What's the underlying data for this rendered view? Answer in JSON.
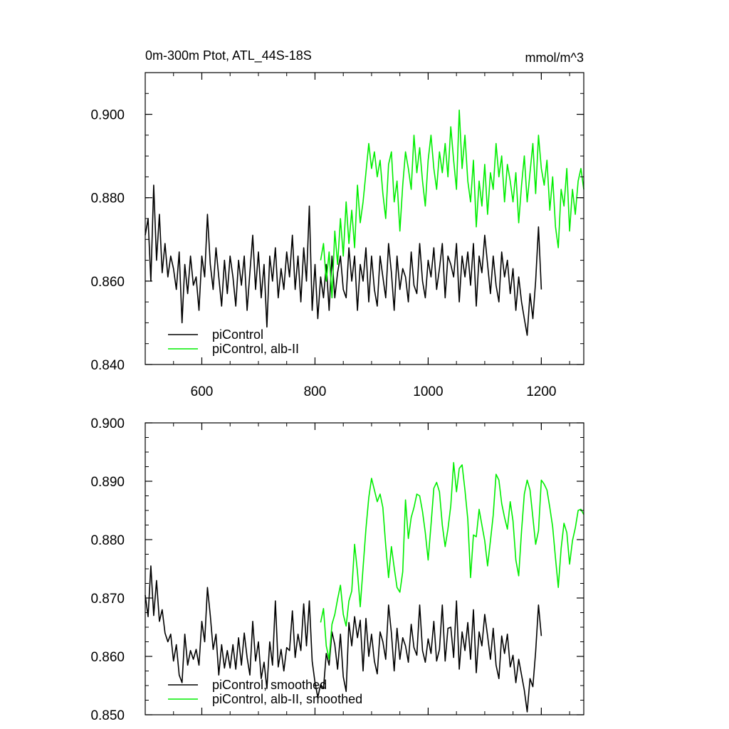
{
  "figure": {
    "title_left": "0m-300m Ptot, ATL_44S-18S",
    "title_right": "mmol/m^3"
  },
  "colors": {
    "control": "#000000",
    "alb": "#00ee00"
  },
  "chart_data": [
    {
      "type": "line",
      "title": "0m-300m Ptot, ATL_44S-18S",
      "units": "mmol/m^3",
      "xlim": [
        500,
        1275
      ],
      "ylim": [
        0.84,
        0.91
      ],
      "x_ticks": [
        600,
        800,
        1000,
        1200
      ],
      "x_tick_labels": [
        "600",
        "800",
        "1000",
        "1200"
      ],
      "y_ticks": [
        0.84,
        0.86,
        0.88,
        0.9
      ],
      "y_tick_labels": [
        "0.840",
        "0.860",
        "0.880",
        "0.900"
      ],
      "grid": false,
      "legend_position": "bottom-left",
      "series": [
        {
          "name": "piControl",
          "color": "#000000",
          "x": [
            500,
            505,
            510,
            515,
            520,
            525,
            530,
            535,
            540,
            545,
            550,
            555,
            560,
            565,
            570,
            575,
            580,
            585,
            590,
            595,
            600,
            605,
            610,
            615,
            620,
            625,
            630,
            635,
            640,
            645,
            650,
            655,
            660,
            665,
            670,
            675,
            680,
            685,
            690,
            695,
            700,
            705,
            710,
            715,
            720,
            725,
            730,
            735,
            740,
            745,
            750,
            755,
            760,
            765,
            770,
            775,
            780,
            785,
            790,
            795,
            800,
            805,
            810,
            815,
            820,
            825,
            830,
            835,
            840,
            845,
            850,
            855,
            860,
            865,
            870,
            875,
            880,
            885,
            890,
            895,
            900,
            905,
            910,
            915,
            920,
            925,
            930,
            935,
            940,
            945,
            950,
            955,
            960,
            965,
            970,
            975,
            980,
            985,
            990,
            995,
            1000,
            1005,
            1010,
            1015,
            1020,
            1025,
            1030,
            1035,
            1040,
            1045,
            1050,
            1055,
            1060,
            1065,
            1070,
            1075,
            1080,
            1085,
            1090,
            1095,
            1100,
            1105,
            1110,
            1115,
            1120,
            1125,
            1130,
            1135,
            1140,
            1145,
            1150,
            1155,
            1160,
            1165,
            1170,
            1175,
            1180,
            1185,
            1190,
            1195,
            1200
          ],
          "y": [
            0.871,
            0.875,
            0.86,
            0.883,
            0.865,
            0.876,
            0.862,
            0.869,
            0.861,
            0.866,
            0.863,
            0.858,
            0.867,
            0.85,
            0.864,
            0.857,
            0.866,
            0.859,
            0.861,
            0.853,
            0.866,
            0.861,
            0.876,
            0.864,
            0.858,
            0.868,
            0.861,
            0.854,
            0.865,
            0.857,
            0.866,
            0.861,
            0.854,
            0.865,
            0.859,
            0.866,
            0.853,
            0.862,
            0.871,
            0.858,
            0.867,
            0.856,
            0.864,
            0.849,
            0.866,
            0.86,
            0.868,
            0.856,
            0.863,
            0.858,
            0.867,
            0.861,
            0.871,
            0.858,
            0.866,
            0.855,
            0.868,
            0.86,
            0.878,
            0.853,
            0.864,
            0.851,
            0.861,
            0.856,
            0.864,
            0.853,
            0.866,
            0.856,
            0.862,
            0.866,
            0.858,
            0.856,
            0.868,
            0.86,
            0.866,
            0.853,
            0.864,
            0.86,
            0.868,
            0.855,
            0.866,
            0.858,
            0.854,
            0.866,
            0.861,
            0.856,
            0.869,
            0.862,
            0.853,
            0.866,
            0.858,
            0.863,
            0.861,
            0.855,
            0.867,
            0.859,
            0.857,
            0.869,
            0.86,
            0.856,
            0.865,
            0.861,
            0.868,
            0.858,
            0.863,
            0.869,
            0.856,
            0.866,
            0.864,
            0.861,
            0.869,
            0.855,
            0.866,
            0.861,
            0.867,
            0.859,
            0.869,
            0.854,
            0.866,
            0.862,
            0.871,
            0.864,
            0.857,
            0.866,
            0.859,
            0.855,
            0.867,
            0.861,
            0.865,
            0.857,
            0.863,
            0.853,
            0.861,
            0.855,
            0.851,
            0.847,
            0.857,
            0.851,
            0.86,
            0.873,
            0.858
          ]
        },
        {
          "name": "piControl, alb-II",
          "color": "#00ee00",
          "x": [
            810,
            815,
            820,
            825,
            830,
            835,
            840,
            845,
            850,
            855,
            860,
            865,
            870,
            875,
            880,
            885,
            890,
            895,
            900,
            905,
            910,
            915,
            920,
            925,
            930,
            935,
            940,
            945,
            950,
            955,
            960,
            965,
            970,
            975,
            980,
            985,
            990,
            995,
            1000,
            1005,
            1010,
            1015,
            1020,
            1025,
            1030,
            1035,
            1040,
            1045,
            1050,
            1055,
            1060,
            1065,
            1070,
            1075,
            1080,
            1085,
            1090,
            1095,
            1100,
            1105,
            1110,
            1115,
            1120,
            1125,
            1130,
            1135,
            1140,
            1145,
            1150,
            1155,
            1160,
            1165,
            1170,
            1175,
            1180,
            1185,
            1190,
            1195,
            1200,
            1205,
            1210,
            1215,
            1220,
            1225,
            1230,
            1235,
            1240,
            1245,
            1250,
            1255,
            1260,
            1265,
            1270,
            1275
          ],
          "y": [
            0.865,
            0.869,
            0.86,
            0.867,
            0.856,
            0.872,
            0.864,
            0.875,
            0.866,
            0.879,
            0.869,
            0.877,
            0.868,
            0.883,
            0.874,
            0.879,
            0.886,
            0.893,
            0.887,
            0.891,
            0.885,
            0.889,
            0.881,
            0.875,
            0.888,
            0.891,
            0.879,
            0.884,
            0.872,
            0.883,
            0.891,
            0.887,
            0.882,
            0.895,
            0.886,
            0.892,
            0.884,
            0.878,
            0.889,
            0.895,
            0.887,
            0.882,
            0.891,
            0.886,
            0.893,
            0.885,
            0.897,
            0.889,
            0.882,
            0.901,
            0.887,
            0.895,
            0.884,
            0.879,
            0.889,
            0.873,
            0.884,
            0.878,
            0.888,
            0.876,
            0.886,
            0.882,
            0.893,
            0.885,
            0.89,
            0.879,
            0.888,
            0.884,
            0.879,
            0.886,
            0.874,
            0.883,
            0.89,
            0.879,
            0.886,
            0.893,
            0.881,
            0.895,
            0.887,
            0.883,
            0.889,
            0.877,
            0.885,
            0.873,
            0.868,
            0.882,
            0.878,
            0.887,
            0.872,
            0.882,
            0.876,
            0.884,
            0.887,
            0.882
          ]
        }
      ]
    },
    {
      "type": "line",
      "xlim": [
        500,
        1275
      ],
      "ylim": [
        0.85,
        0.9
      ],
      "x_ticks": [
        600,
        800,
        1000,
        1200
      ],
      "x_tick_labels": [],
      "y_ticks": [
        0.85,
        0.86,
        0.87,
        0.88,
        0.89,
        0.9
      ],
      "y_tick_labels": [
        "0.850",
        "0.860",
        "0.870",
        "0.880",
        "0.890",
        "0.900"
      ],
      "grid": false,
      "legend_position": "bottom-left",
      "series": [
        {
          "name": "piControl, smoothed",
          "color": "#000000",
          "x": [
            500,
            505,
            510,
            515,
            520,
            525,
            530,
            535,
            540,
            545,
            550,
            555,
            560,
            565,
            570,
            575,
            580,
            585,
            590,
            595,
            600,
            605,
            610,
            615,
            620,
            625,
            630,
            635,
            640,
            645,
            650,
            655,
            660,
            665,
            670,
            675,
            680,
            685,
            690,
            695,
            700,
            705,
            710,
            715,
            720,
            725,
            730,
            735,
            740,
            745,
            750,
            755,
            760,
            765,
            770,
            775,
            780,
            785,
            790,
            795,
            800,
            805,
            810,
            815,
            820,
            825,
            830,
            835,
            840,
            845,
            850,
            855,
            860,
            865,
            870,
            875,
            880,
            885,
            890,
            895,
            900,
            905,
            910,
            915,
            920,
            925,
            930,
            935,
            940,
            945,
            950,
            955,
            960,
            965,
            970,
            975,
            980,
            985,
            990,
            995,
            1000,
            1005,
            1010,
            1015,
            1020,
            1025,
            1030,
            1035,
            1040,
            1045,
            1050,
            1055,
            1060,
            1065,
            1070,
            1075,
            1080,
            1085,
            1090,
            1095,
            1100,
            1105,
            1110,
            1115,
            1120,
            1125,
            1130,
            1135,
            1140,
            1145,
            1150,
            1155,
            1160,
            1165,
            1170,
            1175,
            1180,
            1185,
            1190,
            1195,
            1200
          ],
          "y": [
            0.8705,
            0.8668,
            0.8755,
            0.867,
            0.873,
            0.866,
            0.868,
            0.864,
            0.8625,
            0.8638,
            0.8592,
            0.862,
            0.8568,
            0.8555,
            0.8638,
            0.8585,
            0.861,
            0.8595,
            0.8612,
            0.8585,
            0.866,
            0.8625,
            0.8718,
            0.867,
            0.8612,
            0.8638,
            0.8568,
            0.862,
            0.858,
            0.861,
            0.858,
            0.862,
            0.8578,
            0.8632,
            0.8585,
            0.864,
            0.8598,
            0.8568,
            0.866,
            0.8592,
            0.8625,
            0.8562,
            0.859,
            0.8545,
            0.8625,
            0.8585,
            0.8695,
            0.8582,
            0.8612,
            0.8575,
            0.8615,
            0.861,
            0.8678,
            0.8598,
            0.8638,
            0.861,
            0.869,
            0.8618,
            0.8695,
            0.8592,
            0.8555,
            0.853,
            0.8552,
            0.8545,
            0.8605,
            0.8585,
            0.8642,
            0.862,
            0.8578,
            0.8638,
            0.8565,
            0.854,
            0.8658,
            0.8618,
            0.8668,
            0.8632,
            0.8662,
            0.8575,
            0.8665,
            0.86,
            0.8638,
            0.8592,
            0.857,
            0.8642,
            0.8625,
            0.8595,
            0.8688,
            0.864,
            0.8575,
            0.8648,
            0.8595,
            0.8632,
            0.8618,
            0.859,
            0.8655,
            0.8615,
            0.8602,
            0.8688,
            0.861,
            0.859,
            0.863,
            0.8605,
            0.866,
            0.8592,
            0.8612,
            0.8688,
            0.8592,
            0.8648,
            0.865,
            0.8598,
            0.8695,
            0.8578,
            0.8642,
            0.861,
            0.8658,
            0.8595,
            0.868,
            0.8572,
            0.8642,
            0.8618,
            0.8672,
            0.8635,
            0.8595,
            0.8648,
            0.8585,
            0.8562,
            0.8635,
            0.8605,
            0.8638,
            0.8582,
            0.8602,
            0.8555,
            0.8595,
            0.8568,
            0.8542,
            0.8505,
            0.8562,
            0.8548,
            0.8608,
            0.8688,
            0.8635
          ]
        },
        {
          "name": "piControl, alb-II, smoothed",
          "color": "#00ee00",
          "x": [
            810,
            815,
            820,
            825,
            830,
            835,
            840,
            845,
            850,
            855,
            860,
            865,
            870,
            875,
            880,
            885,
            890,
            895,
            900,
            905,
            910,
            915,
            920,
            925,
            930,
            935,
            940,
            945,
            950,
            955,
            960,
            965,
            970,
            975,
            980,
            985,
            990,
            995,
            1000,
            1005,
            1010,
            1015,
            1020,
            1025,
            1030,
            1035,
            1040,
            1045,
            1050,
            1055,
            1060,
            1065,
            1070,
            1075,
            1080,
            1085,
            1090,
            1095,
            1100,
            1105,
            1110,
            1115,
            1120,
            1125,
            1130,
            1135,
            1140,
            1145,
            1150,
            1155,
            1160,
            1165,
            1170,
            1175,
            1180,
            1185,
            1190,
            1195,
            1200,
            1205,
            1210,
            1215,
            1220,
            1225,
            1230,
            1235,
            1240,
            1245,
            1250,
            1255,
            1260,
            1265,
            1270,
            1275
          ],
          "y": [
            0.8658,
            0.8682,
            0.8618,
            0.8595,
            0.8655,
            0.8672,
            0.8698,
            0.8722,
            0.8672,
            0.8652,
            0.8695,
            0.8712,
            0.8792,
            0.8745,
            0.8685,
            0.8752,
            0.8818,
            0.8872,
            0.8905,
            0.8885,
            0.8865,
            0.8878,
            0.8855,
            0.879,
            0.8735,
            0.8788,
            0.8752,
            0.8718,
            0.871,
            0.8745,
            0.8868,
            0.8802,
            0.8838,
            0.8855,
            0.8878,
            0.8875,
            0.8848,
            0.8812,
            0.8765,
            0.8825,
            0.8888,
            0.8898,
            0.8882,
            0.8825,
            0.8788,
            0.8818,
            0.8858,
            0.8932,
            0.8882,
            0.8922,
            0.8928,
            0.8885,
            0.8835,
            0.8735,
            0.8808,
            0.8805,
            0.8852,
            0.8825,
            0.8798,
            0.8755,
            0.8798,
            0.8842,
            0.8912,
            0.8902,
            0.8862,
            0.8838,
            0.8818,
            0.8865,
            0.8832,
            0.8765,
            0.8738,
            0.8815,
            0.8878,
            0.8902,
            0.8885,
            0.8838,
            0.8792,
            0.8815,
            0.8902,
            0.8895,
            0.8885,
            0.8855,
            0.8822,
            0.8768,
            0.8718,
            0.8785,
            0.8828,
            0.8812,
            0.8758,
            0.8798,
            0.882,
            0.885,
            0.8852,
            0.8843
          ]
        }
      ]
    }
  ]
}
